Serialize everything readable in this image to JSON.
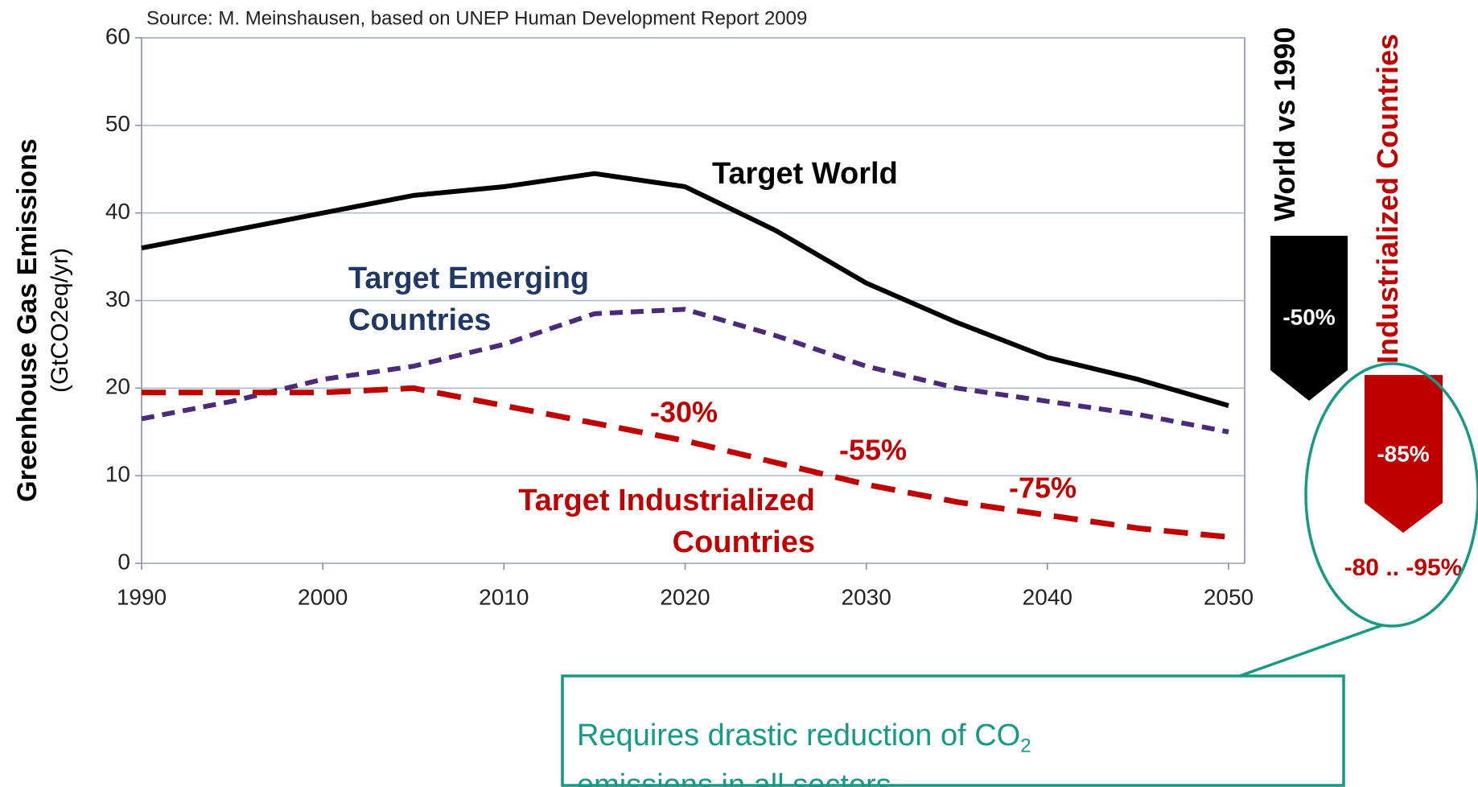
{
  "chart_data": {
    "type": "line",
    "subtitle": "Source: M. Meinshausen, based  on UNEP Human Development Report 2009",
    "y_label": "Greenhouse Gas Emissions",
    "y_unit_label": "(GtCO2eq/yr)",
    "x": [
      1990,
      1995,
      2000,
      2005,
      2010,
      2015,
      2020,
      2025,
      2030,
      2035,
      2040,
      2045,
      2050
    ],
    "series": [
      {
        "name": "Target World",
        "color": "#000000",
        "style": "solid",
        "values": [
          36,
          38,
          40,
          42,
          43,
          44.5,
          43,
          38,
          32,
          27.5,
          23.5,
          21,
          18
        ]
      },
      {
        "name": "Target Emerging Countries",
        "color": "#4b2a7a",
        "style": "dashed",
        "values": [
          16.5,
          18.5,
          21,
          22.5,
          25,
          28.5,
          29,
          26,
          22.5,
          20,
          18.5,
          17,
          15
        ]
      },
      {
        "name": "Target Industrialized Countries",
        "color": "#c00000",
        "style": "dashed",
        "values": [
          19.5,
          19.5,
          19.5,
          20,
          18,
          16,
          14,
          11.5,
          9,
          7,
          5.5,
          4,
          3
        ]
      }
    ],
    "annotations": [
      "-30%",
      "-55%",
      "-75%"
    ],
    "xlim": [
      1990,
      2050
    ],
    "xticks": [
      1990,
      2000,
      2010,
      2020,
      2030,
      2040,
      2050
    ],
    "ylim": [
      0,
      60
    ],
    "yticks": [
      0,
      10,
      20,
      30,
      40,
      50,
      60
    ],
    "grid": true
  },
  "side_panel": {
    "world_label": "World vs 1990",
    "world_change": "-50%",
    "industrialized_label": "Industrialized Countries",
    "industrialized_change": "-85%",
    "industrialized_range": "-80 .. -95%"
  },
  "callout": {
    "line1": "Requires drastic reduction of CO",
    "subscript": "2",
    "line2": "emissions in all sectors"
  }
}
